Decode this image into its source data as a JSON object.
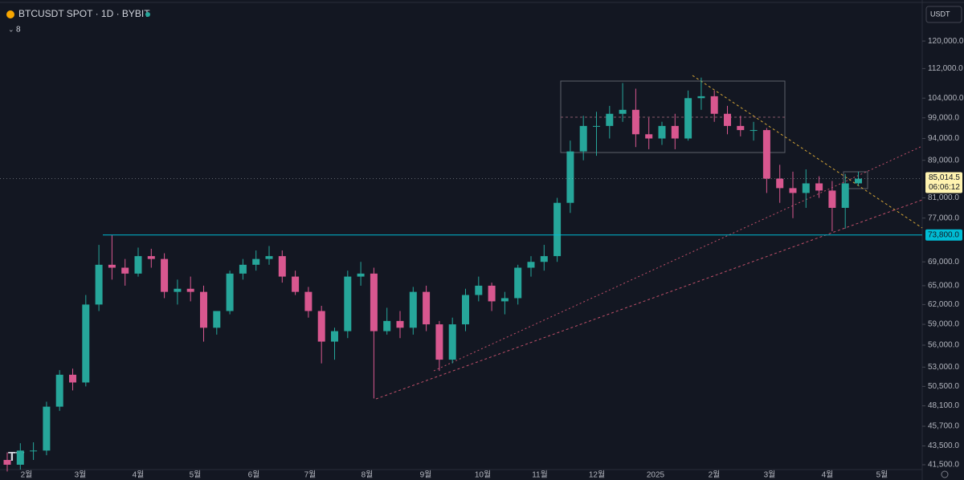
{
  "chart_data": {
    "type": "candlestick",
    "title": "BTCUSDT SPOT · 1D · BYBIT",
    "indicator_count": "8",
    "currency": "USDT",
    "up_color": "#26a69a",
    "down_color": "#d8578f",
    "log_scale": true,
    "ylim": [
      41000,
      133000
    ],
    "yticks": [
      {
        "value": 120000,
        "label": "120,000.0"
      },
      {
        "value": 112000,
        "label": "112,000.0"
      },
      {
        "value": 104000,
        "label": "104,000.0"
      },
      {
        "value": 99000,
        "label": "99,000.0"
      },
      {
        "value": 94000,
        "label": "94,000.0"
      },
      {
        "value": 89000,
        "label": "89,000.0"
      },
      {
        "value": 81000,
        "label": "81,000.0"
      },
      {
        "value": 77000,
        "label": "77,000.0"
      },
      {
        "value": 69000,
        "label": "69,000.0"
      },
      {
        "value": 65000,
        "label": "65,000.0"
      },
      {
        "value": 62000,
        "label": "62,000.0"
      },
      {
        "value": 59000,
        "label": "59,000.0"
      },
      {
        "value": 56000,
        "label": "56,000.0"
      },
      {
        "value": 53000,
        "label": "53,000.0"
      },
      {
        "value": 50500,
        "label": "50,500.0"
      },
      {
        "value": 48100,
        "label": "48,100.0"
      },
      {
        "value": 45700,
        "label": "45,700.0"
      },
      {
        "value": 43500,
        "label": "43,500.0"
      },
      {
        "value": 41500,
        "label": "41,500.0"
      }
    ],
    "xtick_labels": [
      "2월",
      "3월",
      "4월",
      "5월",
      "6월",
      "7월",
      "8월",
      "9월",
      "10월",
      "11월",
      "12월",
      "2025",
      "2월",
      "3월",
      "4월",
      "5월"
    ],
    "horizontal_line": {
      "value": 73800,
      "label": "73,800.0",
      "color": "#00bcd4"
    },
    "last_price": {
      "value": 85014.5,
      "label": "85,014.5",
      "countdown": "06:06:12"
    },
    "open": [
      42000,
      41500,
      43000,
      43000,
      48000,
      52000,
      51000,
      62000,
      68500,
      68000,
      67000,
      70000,
      69500,
      64000,
      64500,
      64000,
      58500,
      61000,
      67000,
      68500,
      69500,
      70000,
      66500,
      64000,
      61000,
      56500,
      58000,
      66500,
      67000,
      58000,
      59500,
      58500,
      64000,
      59000,
      54000,
      59000,
      63500,
      65000,
      62500,
      63000,
      68000,
      69000,
      70000,
      80000,
      91000,
      97000,
      97000,
      100000,
      101000,
      95000,
      94000,
      97000,
      94000,
      104000,
      104500,
      100000,
      97000,
      96000,
      96000,
      85000,
      83000,
      82000,
      84000,
      82500,
      79000,
      84000
    ],
    "high": [
      42800,
      43800,
      43900,
      48600,
      52600,
      52800,
      63500,
      72000,
      73800,
      69500,
      71500,
      71300,
      70500,
      66000,
      66500,
      65000,
      61000,
      67500,
      69500,
      71000,
      71800,
      71000,
      67500,
      64800,
      61800,
      58500,
      67500,
      69000,
      68000,
      61500,
      61000,
      64800,
      65000,
      59500,
      60000,
      64500,
      66500,
      65500,
      64000,
      68500,
      70000,
      72000,
      81000,
      93500,
      99500,
      100500,
      102000,
      108000,
      106500,
      99000,
      98000,
      100000,
      106000,
      109500,
      106000,
      102000,
      99500,
      98000,
      96500,
      88000,
      86500,
      87000,
      85500,
      84500,
      86000,
      86500
    ],
    "low": [
      40800,
      41000,
      42000,
      42500,
      47500,
      50000,
      50500,
      61000,
      66000,
      65000,
      66500,
      68000,
      63000,
      62000,
      62500,
      56500,
      57500,
      60500,
      66000,
      67500,
      68500,
      65500,
      63500,
      60000,
      53500,
      54000,
      57000,
      65000,
      49000,
      57500,
      57000,
      57500,
      58000,
      52500,
      53500,
      58000,
      62500,
      61000,
      60500,
      62000,
      66500,
      67500,
      69000,
      78000,
      89000,
      90000,
      94000,
      98000,
      92000,
      91500,
      92500,
      91500,
      93500,
      101000,
      98000,
      95000,
      94500,
      93500,
      82000,
      80000,
      77000,
      79000,
      81000,
      74500,
      75000,
      83500
    ],
    "close": [
      41500,
      43000,
      43000,
      48000,
      52000,
      51000,
      62000,
      68500,
      68000,
      67000,
      70000,
      69500,
      64000,
      64500,
      64000,
      58500,
      61000,
      67000,
      68500,
      69500,
      70000,
      66500,
      64000,
      61000,
      56500,
      58000,
      66500,
      67000,
      58000,
      59500,
      58500,
      64000,
      59000,
      54000,
      59000,
      63500,
      65000,
      62500,
      63000,
      68000,
      69000,
      70000,
      80000,
      91000,
      97000,
      97000,
      100000,
      101000,
      95000,
      94000,
      97000,
      94000,
      104000,
      104500,
      100000,
      97000,
      96000,
      96000,
      85000,
      83000,
      82000,
      84000,
      82500,
      79000,
      84000,
      85000
    ]
  }
}
